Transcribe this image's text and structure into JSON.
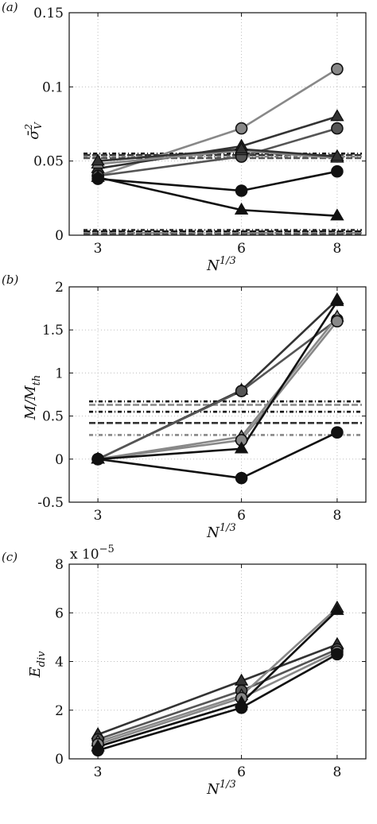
{
  "colors": {
    "black": "#111111",
    "dark": "#333333",
    "mid": "#555555",
    "light": "#888888",
    "grid": "#bdbdbd"
  },
  "chart_data": [
    {
      "type": "line",
      "panel_label": "(a)",
      "xlabel": "N^1/3",
      "ylabel": "σ̄_V^2",
      "x": [
        3,
        6,
        8
      ],
      "xticks": [
        "3",
        "6",
        "8"
      ],
      "yticks": [
        "0",
        "0.05",
        "0.1",
        "0.15"
      ],
      "ylim": [
        0,
        0.15
      ],
      "xlim": [
        2.4,
        8.6
      ],
      "grid": true,
      "series": [
        {
          "marker": "circle",
          "color": "light",
          "values": [
            0.04,
            0.072,
            0.112
          ]
        },
        {
          "marker": "triangle",
          "color": "dark",
          "values": [
            0.045,
            0.06,
            0.08
          ]
        },
        {
          "marker": "circle",
          "color": "mid",
          "values": [
            0.04,
            0.053,
            0.072
          ]
        },
        {
          "marker": "triangle",
          "color": "light",
          "values": [
            0.048,
            0.057,
            0.052
          ]
        },
        {
          "marker": "triangle",
          "color": "dark",
          "values": [
            0.05,
            0.058,
            0.053
          ]
        },
        {
          "marker": "circle",
          "color": "black",
          "values": [
            0.038,
            0.03,
            0.043
          ]
        },
        {
          "marker": "triangle",
          "color": "black",
          "values": [
            0.039,
            0.017,
            0.013
          ]
        }
      ],
      "reference_lines": [
        {
          "value": 0.055,
          "color": "black"
        },
        {
          "value": 0.054,
          "color": "dark"
        },
        {
          "value": 0.053,
          "color": "light"
        },
        {
          "value": 0.052,
          "color": "mid"
        },
        {
          "value": 0.0035,
          "color": "dark"
        },
        {
          "value": 0.0025,
          "color": "black"
        },
        {
          "value": 0.0015,
          "color": "light"
        },
        {
          "value": 0.0008,
          "color": "mid"
        }
      ]
    },
    {
      "type": "line",
      "panel_label": "(b)",
      "xlabel": "N^1/3",
      "ylabel": "M/M_th",
      "x": [
        3,
        6,
        8
      ],
      "xticks": [
        "3",
        "6",
        "8"
      ],
      "yticks": [
        "-0.5",
        "0",
        "0.5",
        "1",
        "1.5",
        "2"
      ],
      "ylim": [
        -0.5,
        2
      ],
      "xlim": [
        2.4,
        8.6
      ],
      "grid": true,
      "series": [
        {
          "marker": "triangle",
          "color": "dark",
          "values": [
            0.0,
            0.8,
            1.85
          ]
        },
        {
          "marker": "circle",
          "color": "mid",
          "values": [
            0.0,
            0.79,
            1.62
          ]
        },
        {
          "marker": "triangle",
          "color": "light",
          "values": [
            0.0,
            0.26,
            1.65
          ]
        },
        {
          "marker": "circle",
          "color": "light",
          "values": [
            0.0,
            0.22,
            1.6
          ]
        },
        {
          "marker": "triangle",
          "color": "black",
          "values": [
            0.0,
            0.12,
            1.83
          ]
        },
        {
          "marker": "circle",
          "color": "black",
          "values": [
            0.0,
            -0.22,
            0.31
          ]
        }
      ],
      "reference_lines": [
        {
          "value": 0.67,
          "color": "black"
        },
        {
          "value": 0.63,
          "color": "light"
        },
        {
          "value": 0.55,
          "color": "black"
        },
        {
          "value": 0.42,
          "color": "dark"
        },
        {
          "value": 0.28,
          "color": "light"
        }
      ]
    },
    {
      "type": "line",
      "panel_label": "(c)",
      "xlabel": "N^1/3",
      "ylabel": "E_div",
      "exponent_label": "x 10",
      "exponent_power": "−5",
      "x": [
        3,
        6,
        8
      ],
      "xticks": [
        "3",
        "6",
        "8"
      ],
      "yticks": [
        "0",
        "2",
        "4",
        "6",
        "8"
      ],
      "ylim": [
        0,
        8
      ],
      "xlim": [
        2.4,
        8.6
      ],
      "grid": true,
      "series": [
        {
          "marker": "triangle",
          "color": "dark",
          "values": [
            1.0,
            3.2,
            4.7
          ]
        },
        {
          "marker": "circle",
          "color": "mid",
          "values": [
            0.8,
            2.8,
            4.5
          ]
        },
        {
          "marker": "triangle",
          "color": "light",
          "values": [
            0.7,
            2.6,
            6.2
          ]
        },
        {
          "marker": "circle",
          "color": "light",
          "values": [
            0.6,
            2.5,
            4.4
          ]
        },
        {
          "marker": "triangle",
          "color": "black",
          "values": [
            0.5,
            2.3,
            6.1
          ]
        },
        {
          "marker": "circle",
          "color": "black",
          "values": [
            0.35,
            2.1,
            4.3
          ]
        }
      ],
      "reference_lines": []
    }
  ]
}
